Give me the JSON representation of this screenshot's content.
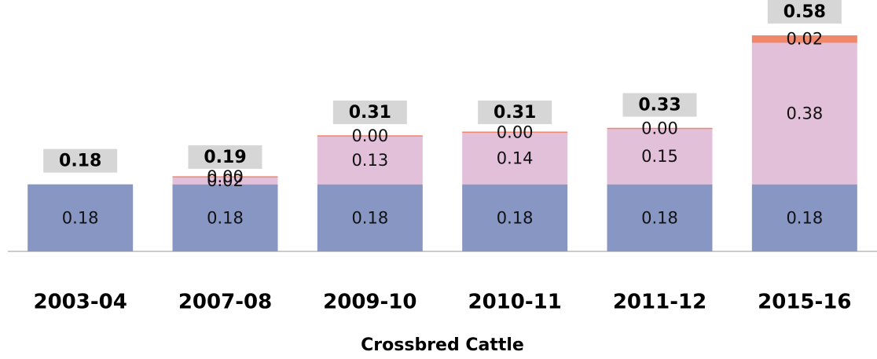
{
  "chart_data": {
    "type": "stacked_bar",
    "title": "Crossbred Cattle",
    "categories": [
      "2003-04",
      "2007-08",
      "2009-10",
      "2010-11",
      "2011-12",
      "2015-16"
    ],
    "series": [
      {
        "color": "#8896c4",
        "values": [
          0.18,
          0.18,
          0.18,
          0.18,
          0.18,
          0.18
        ],
        "value_labels": [
          "0.18",
          "0.18",
          "0.18",
          "0.18",
          "0.18",
          "0.18"
        ]
      },
      {
        "color": "#e3c0da",
        "values": [
          null,
          0.02,
          0.13,
          0.14,
          0.15,
          0.38
        ],
        "value_labels": [
          null,
          "0.02",
          "0.13",
          "0.14",
          "0.15",
          "0.38"
        ]
      },
      {
        "color": "#f0866a",
        "values": [
          null,
          0,
          0,
          0,
          0,
          0.02
        ],
        "value_labels": [
          null,
          "0.00",
          "0.00",
          "0.00",
          "0.00",
          "0.02"
        ]
      }
    ],
    "totals": [
      0.18,
      0.19,
      0.31,
      0.31,
      0.33,
      0.58
    ]
  }
}
